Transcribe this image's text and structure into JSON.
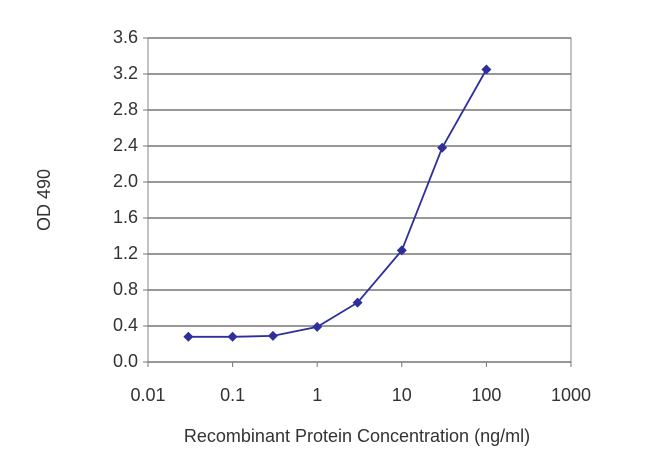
{
  "chart_data": {
    "type": "line",
    "x_label": "Recombinant Protein Concentration (ng/ml)",
    "y_label": "OD 490",
    "x": [
      0.03,
      0.1,
      0.3,
      1,
      3,
      10,
      30,
      100
    ],
    "values": [
      0.28,
      0.28,
      0.29,
      0.39,
      0.66,
      1.24,
      2.38,
      3.25
    ],
    "color": "#2e2e9c",
    "xscale": "log",
    "xlim": [
      0.01,
      1000
    ],
    "xticks": [
      0.01,
      0.1,
      1,
      10,
      100,
      1000
    ],
    "ylim": [
      0,
      3.6
    ],
    "yticks": [
      {
        "value": 0,
        "label": "0.0"
      },
      0.4,
      0.8,
      1.2,
      1.6,
      {
        "value": 2,
        "label": "2.0"
      },
      2.4,
      2.8,
      3.2,
      3.6
    ],
    "grid": true
  }
}
